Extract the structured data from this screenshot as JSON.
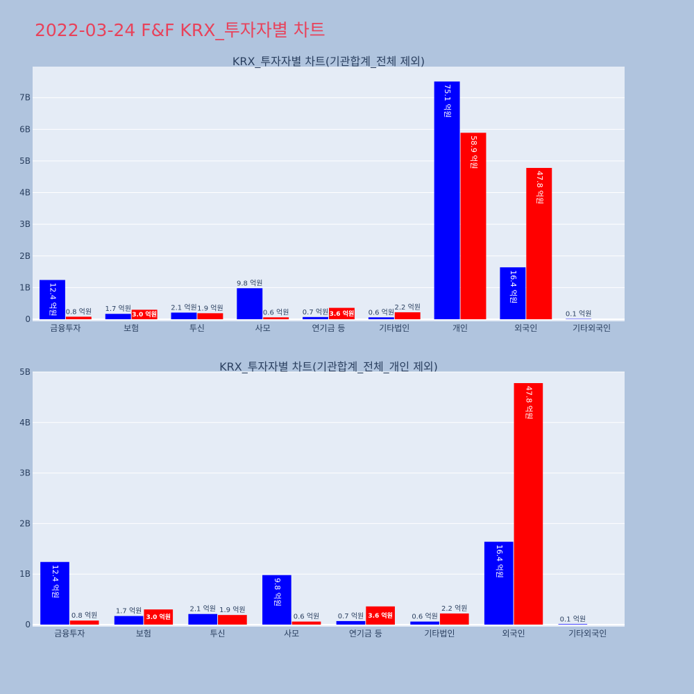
{
  "page": {
    "title": "2022-03-24 F&F KRX_투자자별 차트"
  },
  "colors": {
    "background": "#b0c4de",
    "plot_bg": "#e5ecf6",
    "title": "#e8425a",
    "buy": "#0000ff",
    "sell": "#ff0000"
  },
  "chart_data": [
    {
      "type": "bar",
      "title": "KRX_투자자별 차트(기관합계_전체 제외)",
      "categories": [
        "금융투자",
        "보험",
        "투신",
        "사모",
        "연기금 등",
        "기타법인",
        "개인",
        "외국인",
        "기타외국인"
      ],
      "series": [
        {
          "color": "#0000ff",
          "values": [
            1240000000,
            170000000,
            210000000,
            980000000,
            70000000,
            60000000,
            7510000000,
            1640000000,
            10000000
          ],
          "labels": [
            "12.4 억원",
            "1.7 억원",
            "2.1 억원",
            "9.8 억원",
            "0.7 억원",
            "0.6 억원",
            "75.1 억원",
            "16.4 억원",
            "0.1 억원"
          ]
        },
        {
          "color": "#ff0000",
          "values": [
            80000000,
            300000000,
            190000000,
            60000000,
            360000000,
            220000000,
            5890000000,
            4780000000,
            0
          ],
          "labels": [
            "0.8 억원",
            "3.0 억원",
            "1.9 억원",
            "0.6 억원",
            "3.6 억원",
            "2.2 억원",
            "58.9 억원",
            "47.8 억원",
            ""
          ]
        }
      ],
      "yticks": [
        "0",
        "1B",
        "2B",
        "3B",
        "4B",
        "5B",
        "6B",
        "7B"
      ],
      "ylim": [
        0,
        7980000000
      ],
      "grid": true
    },
    {
      "type": "bar",
      "title": "KRX_투자자별 차트(기관합계_전체_개인 제외)",
      "categories": [
        "금융투자",
        "보험",
        "투신",
        "사모",
        "연기금 등",
        "기타법인",
        "외국인",
        "기타외국인"
      ],
      "series": [
        {
          "color": "#0000ff",
          "values": [
            1240000000,
            170000000,
            210000000,
            980000000,
            70000000,
            60000000,
            1640000000,
            10000000
          ],
          "labels": [
            "12.4 억원",
            "1.7 억원",
            "2.1 억원",
            "9.8 억원",
            "0.7 억원",
            "0.6 억원",
            "16.4 억원",
            "0.1 억원"
          ]
        },
        {
          "color": "#ff0000",
          "values": [
            80000000,
            300000000,
            190000000,
            60000000,
            360000000,
            220000000,
            4780000000,
            0
          ],
          "labels": [
            "0.8 억원",
            "3.0 억원",
            "1.9 억원",
            "0.6 억원",
            "3.6 억원",
            "2.2 억원",
            "47.8 억원",
            ""
          ]
        }
      ],
      "yticks": [
        "0",
        "1B",
        "2B",
        "3B",
        "4B",
        "5B"
      ],
      "ylim": [
        0,
        5000000000
      ],
      "grid": true
    }
  ]
}
